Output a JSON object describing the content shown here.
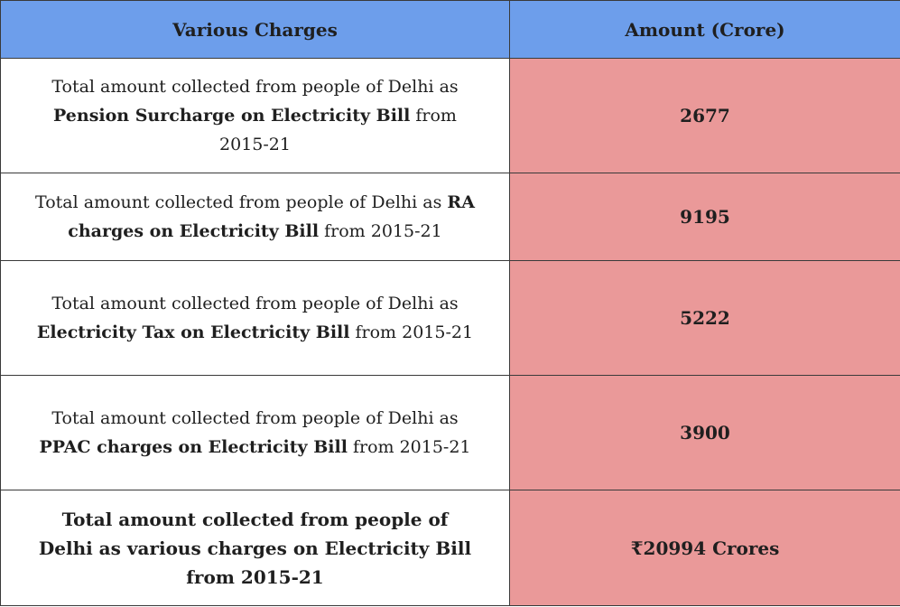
{
  "table": {
    "header": {
      "col1": "Various Charges",
      "col2": "Amount (Crore)"
    },
    "rows": [
      {
        "prefix": "Total amount collected from people of Delhi as",
        "bold": "Pension Surcharge on Electricity Bill",
        "suffix": " from 2015-21",
        "amount": "2677"
      },
      {
        "prefix": "Total amount collected from people of Delhi as",
        "bold": "RA charges on Electricity Bill",
        "suffix": " from 2015-21",
        "amount": "9195"
      },
      {
        "prefix": "Total amount collected from people of Delhi as",
        "bold": "Electricity Tax on Electricity Bill",
        "suffix": " from 2015-21",
        "amount": "5222"
      },
      {
        "prefix": "Total amount collected from people of Delhi as",
        "bold": "PPAC charges on Electricity Bill",
        "suffix": " from 2015-21",
        "amount": "3900"
      }
    ],
    "total": {
      "label": "Total amount collected from people of Delhi as various charges on Electricity Bill from 2015-21",
      "amount": "₹20994 Crores"
    }
  },
  "colors": {
    "header_bg": "#6d9eeb",
    "amount_bg": "#ea9999",
    "border": "#3a3a3a",
    "text": "#1f1f1f"
  }
}
